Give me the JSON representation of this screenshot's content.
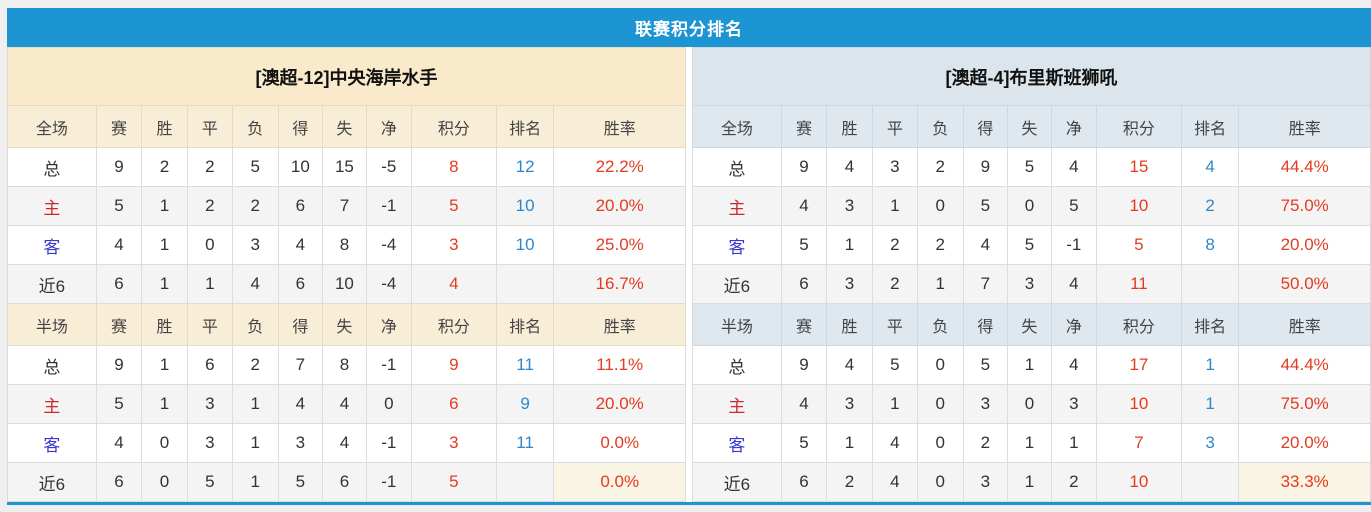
{
  "page": {
    "title": "联赛积分排名"
  },
  "colors": {
    "title_bar_blue": "#1e95d3",
    "left_header_cream": "#f8eacb",
    "right_header_bluegray": "#dce5eb",
    "points_red": "#e33b20",
    "rank_blue": "#2f87c8",
    "home_label_red": "#cb2a2a",
    "away_label_blue": "#3838cc",
    "stripe_gray": "#f4f4f4",
    "rate_highlight_cream": "#faf4e4"
  },
  "columns": {
    "stat_labels": [
      "赛",
      "胜",
      "平",
      "负",
      "得",
      "失",
      "净",
      "积分",
      "排名",
      "胜率"
    ]
  },
  "teams": [
    {
      "name": "[澳超-12]中央海岸水手",
      "theme": "cream",
      "sections": [
        {
          "label": "全场",
          "rows": [
            {
              "label": "总",
              "type": "total",
              "stats": [
                "9",
                "2",
                "2",
                "5",
                "10",
                "15",
                "-5"
              ],
              "points": "8",
              "rank": "12",
              "win_rate": "22.2%",
              "win_rate_highlight": false
            },
            {
              "label": "主",
              "type": "home",
              "stats": [
                "5",
                "1",
                "2",
                "2",
                "6",
                "7",
                "-1"
              ],
              "points": "5",
              "rank": "10",
              "win_rate": "20.0%",
              "win_rate_highlight": false
            },
            {
              "label": "客",
              "type": "away",
              "stats": [
                "4",
                "1",
                "0",
                "3",
                "4",
                "8",
                "-4"
              ],
              "points": "3",
              "rank": "10",
              "win_rate": "25.0%",
              "win_rate_highlight": false
            },
            {
              "label": "近6",
              "type": "recent",
              "stats": [
                "6",
                "1",
                "1",
                "4",
                "6",
                "10",
                "-4"
              ],
              "points": "4",
              "rank": "",
              "win_rate": "16.7%",
              "win_rate_highlight": false
            }
          ]
        },
        {
          "label": "半场",
          "rows": [
            {
              "label": "总",
              "type": "total",
              "stats": [
                "9",
                "1",
                "6",
                "2",
                "7",
                "8",
                "-1"
              ],
              "points": "9",
              "rank": "11",
              "win_rate": "11.1%",
              "win_rate_highlight": false
            },
            {
              "label": "主",
              "type": "home",
              "stats": [
                "5",
                "1",
                "3",
                "1",
                "4",
                "4",
                "0"
              ],
              "points": "6",
              "rank": "9",
              "win_rate": "20.0%",
              "win_rate_highlight": false
            },
            {
              "label": "客",
              "type": "away",
              "stats": [
                "4",
                "0",
                "3",
                "1",
                "3",
                "4",
                "-1"
              ],
              "points": "3",
              "rank": "11",
              "win_rate": "0.0%",
              "win_rate_highlight": false
            },
            {
              "label": "近6",
              "type": "recent",
              "stats": [
                "6",
                "0",
                "5",
                "1",
                "5",
                "6",
                "-1"
              ],
              "points": "5",
              "rank": "",
              "win_rate": "0.0%",
              "win_rate_highlight": true
            }
          ]
        }
      ]
    },
    {
      "name": "[澳超-4]布里斯班狮吼",
      "theme": "bluegray",
      "sections": [
        {
          "label": "全场",
          "rows": [
            {
              "label": "总",
              "type": "total",
              "stats": [
                "9",
                "4",
                "3",
                "2",
                "9",
                "5",
                "4"
              ],
              "points": "15",
              "rank": "4",
              "win_rate": "44.4%",
              "win_rate_highlight": false
            },
            {
              "label": "主",
              "type": "home",
              "stats": [
                "4",
                "3",
                "1",
                "0",
                "5",
                "0",
                "5"
              ],
              "points": "10",
              "rank": "2",
              "win_rate": "75.0%",
              "win_rate_highlight": false
            },
            {
              "label": "客",
              "type": "away",
              "stats": [
                "5",
                "1",
                "2",
                "2",
                "4",
                "5",
                "-1"
              ],
              "points": "5",
              "rank": "8",
              "win_rate": "20.0%",
              "win_rate_highlight": false
            },
            {
              "label": "近6",
              "type": "recent",
              "stats": [
                "6",
                "3",
                "2",
                "1",
                "7",
                "3",
                "4"
              ],
              "points": "11",
              "rank": "",
              "win_rate": "50.0%",
              "win_rate_highlight": false
            }
          ]
        },
        {
          "label": "半场",
          "rows": [
            {
              "label": "总",
              "type": "total",
              "stats": [
                "9",
                "4",
                "5",
                "0",
                "5",
                "1",
                "4"
              ],
              "points": "17",
              "rank": "1",
              "win_rate": "44.4%",
              "win_rate_highlight": false
            },
            {
              "label": "主",
              "type": "home",
              "stats": [
                "4",
                "3",
                "1",
                "0",
                "3",
                "0",
                "3"
              ],
              "points": "10",
              "rank": "1",
              "win_rate": "75.0%",
              "win_rate_highlight": false
            },
            {
              "label": "客",
              "type": "away",
              "stats": [
                "5",
                "1",
                "4",
                "0",
                "2",
                "1",
                "1"
              ],
              "points": "7",
              "rank": "3",
              "win_rate": "20.0%",
              "win_rate_highlight": false
            },
            {
              "label": "近6",
              "type": "recent",
              "stats": [
                "6",
                "2",
                "4",
                "0",
                "3",
                "1",
                "2"
              ],
              "points": "10",
              "rank": "",
              "win_rate": "33.3%",
              "win_rate_highlight": true
            }
          ]
        }
      ]
    }
  ]
}
